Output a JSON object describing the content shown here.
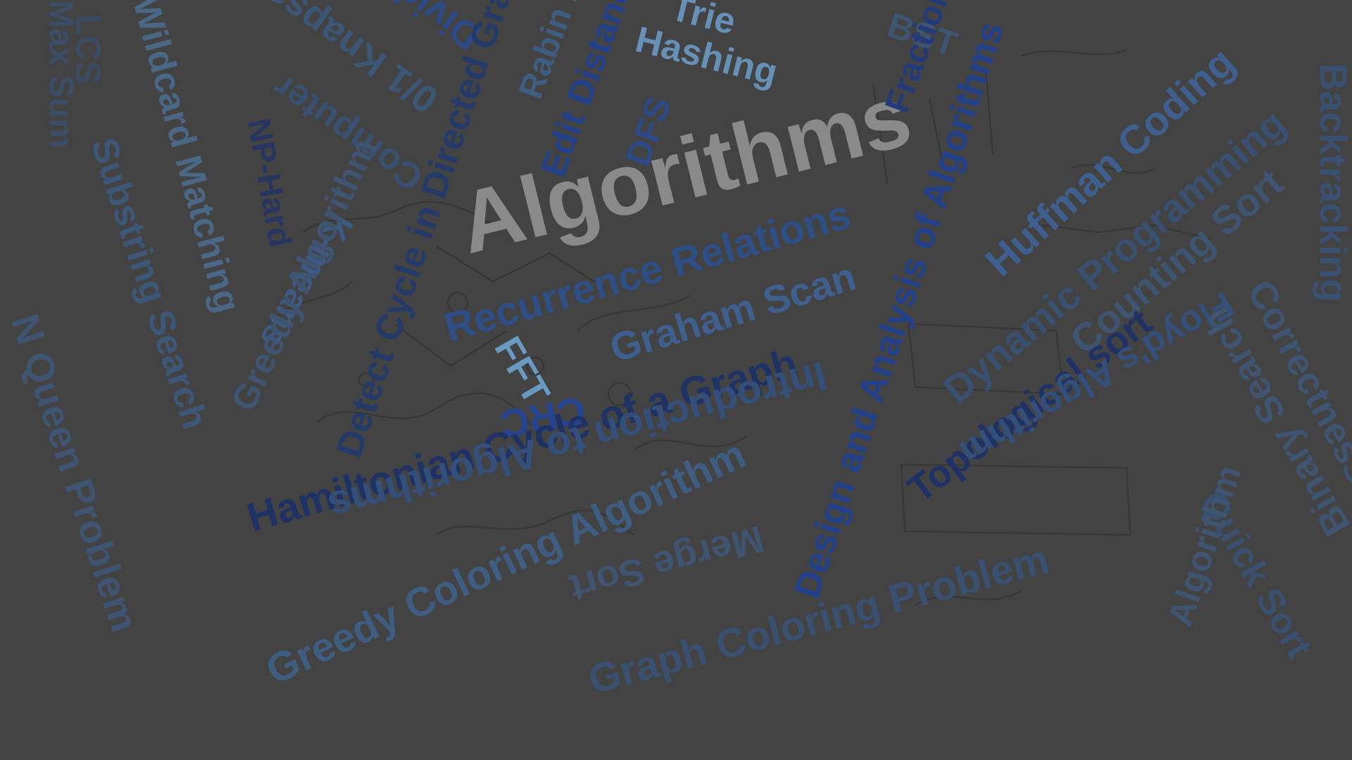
{
  "colors": {
    "background": "#434343",
    "title": "#8a8a8a",
    "blue_dark": "#1f3266",
    "blue_mid": "#2c4a85",
    "blue_steel": "#476c8f",
    "blue_light": "#6690b5",
    "blue_faint": "#3e5470",
    "sketch_lines": "#2b2b2b"
  },
  "words": {
    "title": "Algorithms",
    "recurrence": "Recurrence Relations",
    "graham": "Graham Scan",
    "hamiltonian": "Hamiltonian Cycle of a Graph",
    "intro": "Introduction to Algorithms",
    "greedy_coloring": "Greedy Coloring Algorithm",
    "merge_sort": "Merge Sort",
    "graph_coloring": "Graph Coloring Problem",
    "design": "Design and Analysis of Algorithms",
    "huffman": "Huffman Coding",
    "dynamic": "Dynamic Programming",
    "counting": "Counting Sort",
    "topological": "Topological sort",
    "floyd": "Floyd's Algorithm",
    "quick_sort": "Quick Sort",
    "binary_search": "Binary Search",
    "correctness": "Correctness",
    "backtracking": "Backtracking",
    "greedy_algorithm": "Greedy Algorithm",
    "fft": "FFT",
    "crc": "CRC",
    "hashing": "Hashing",
    "dfs": "DFS",
    "trie": "Trie",
    "bst": "BST",
    "fractional": "Fractional",
    "edit_distance": "Edit Distance",
    "rabin": "Rabin Karp",
    "detect_cycle": "Detect Cycle in Directed Graph",
    "conquer": "Divide and Conquer",
    "knapsack": "0/1 Knapsack",
    "kmeans": "K-means",
    "ncomputer": "Computer",
    "np_hard": "NP-Hard",
    "wildcard": "Wildcard Matching",
    "substring": "Substring Search",
    "lcs": "LCS",
    "max_sum": "Max Sum",
    "n_queen": "N Queen Problem",
    "inner_algorithm": "Algorithm"
  }
}
